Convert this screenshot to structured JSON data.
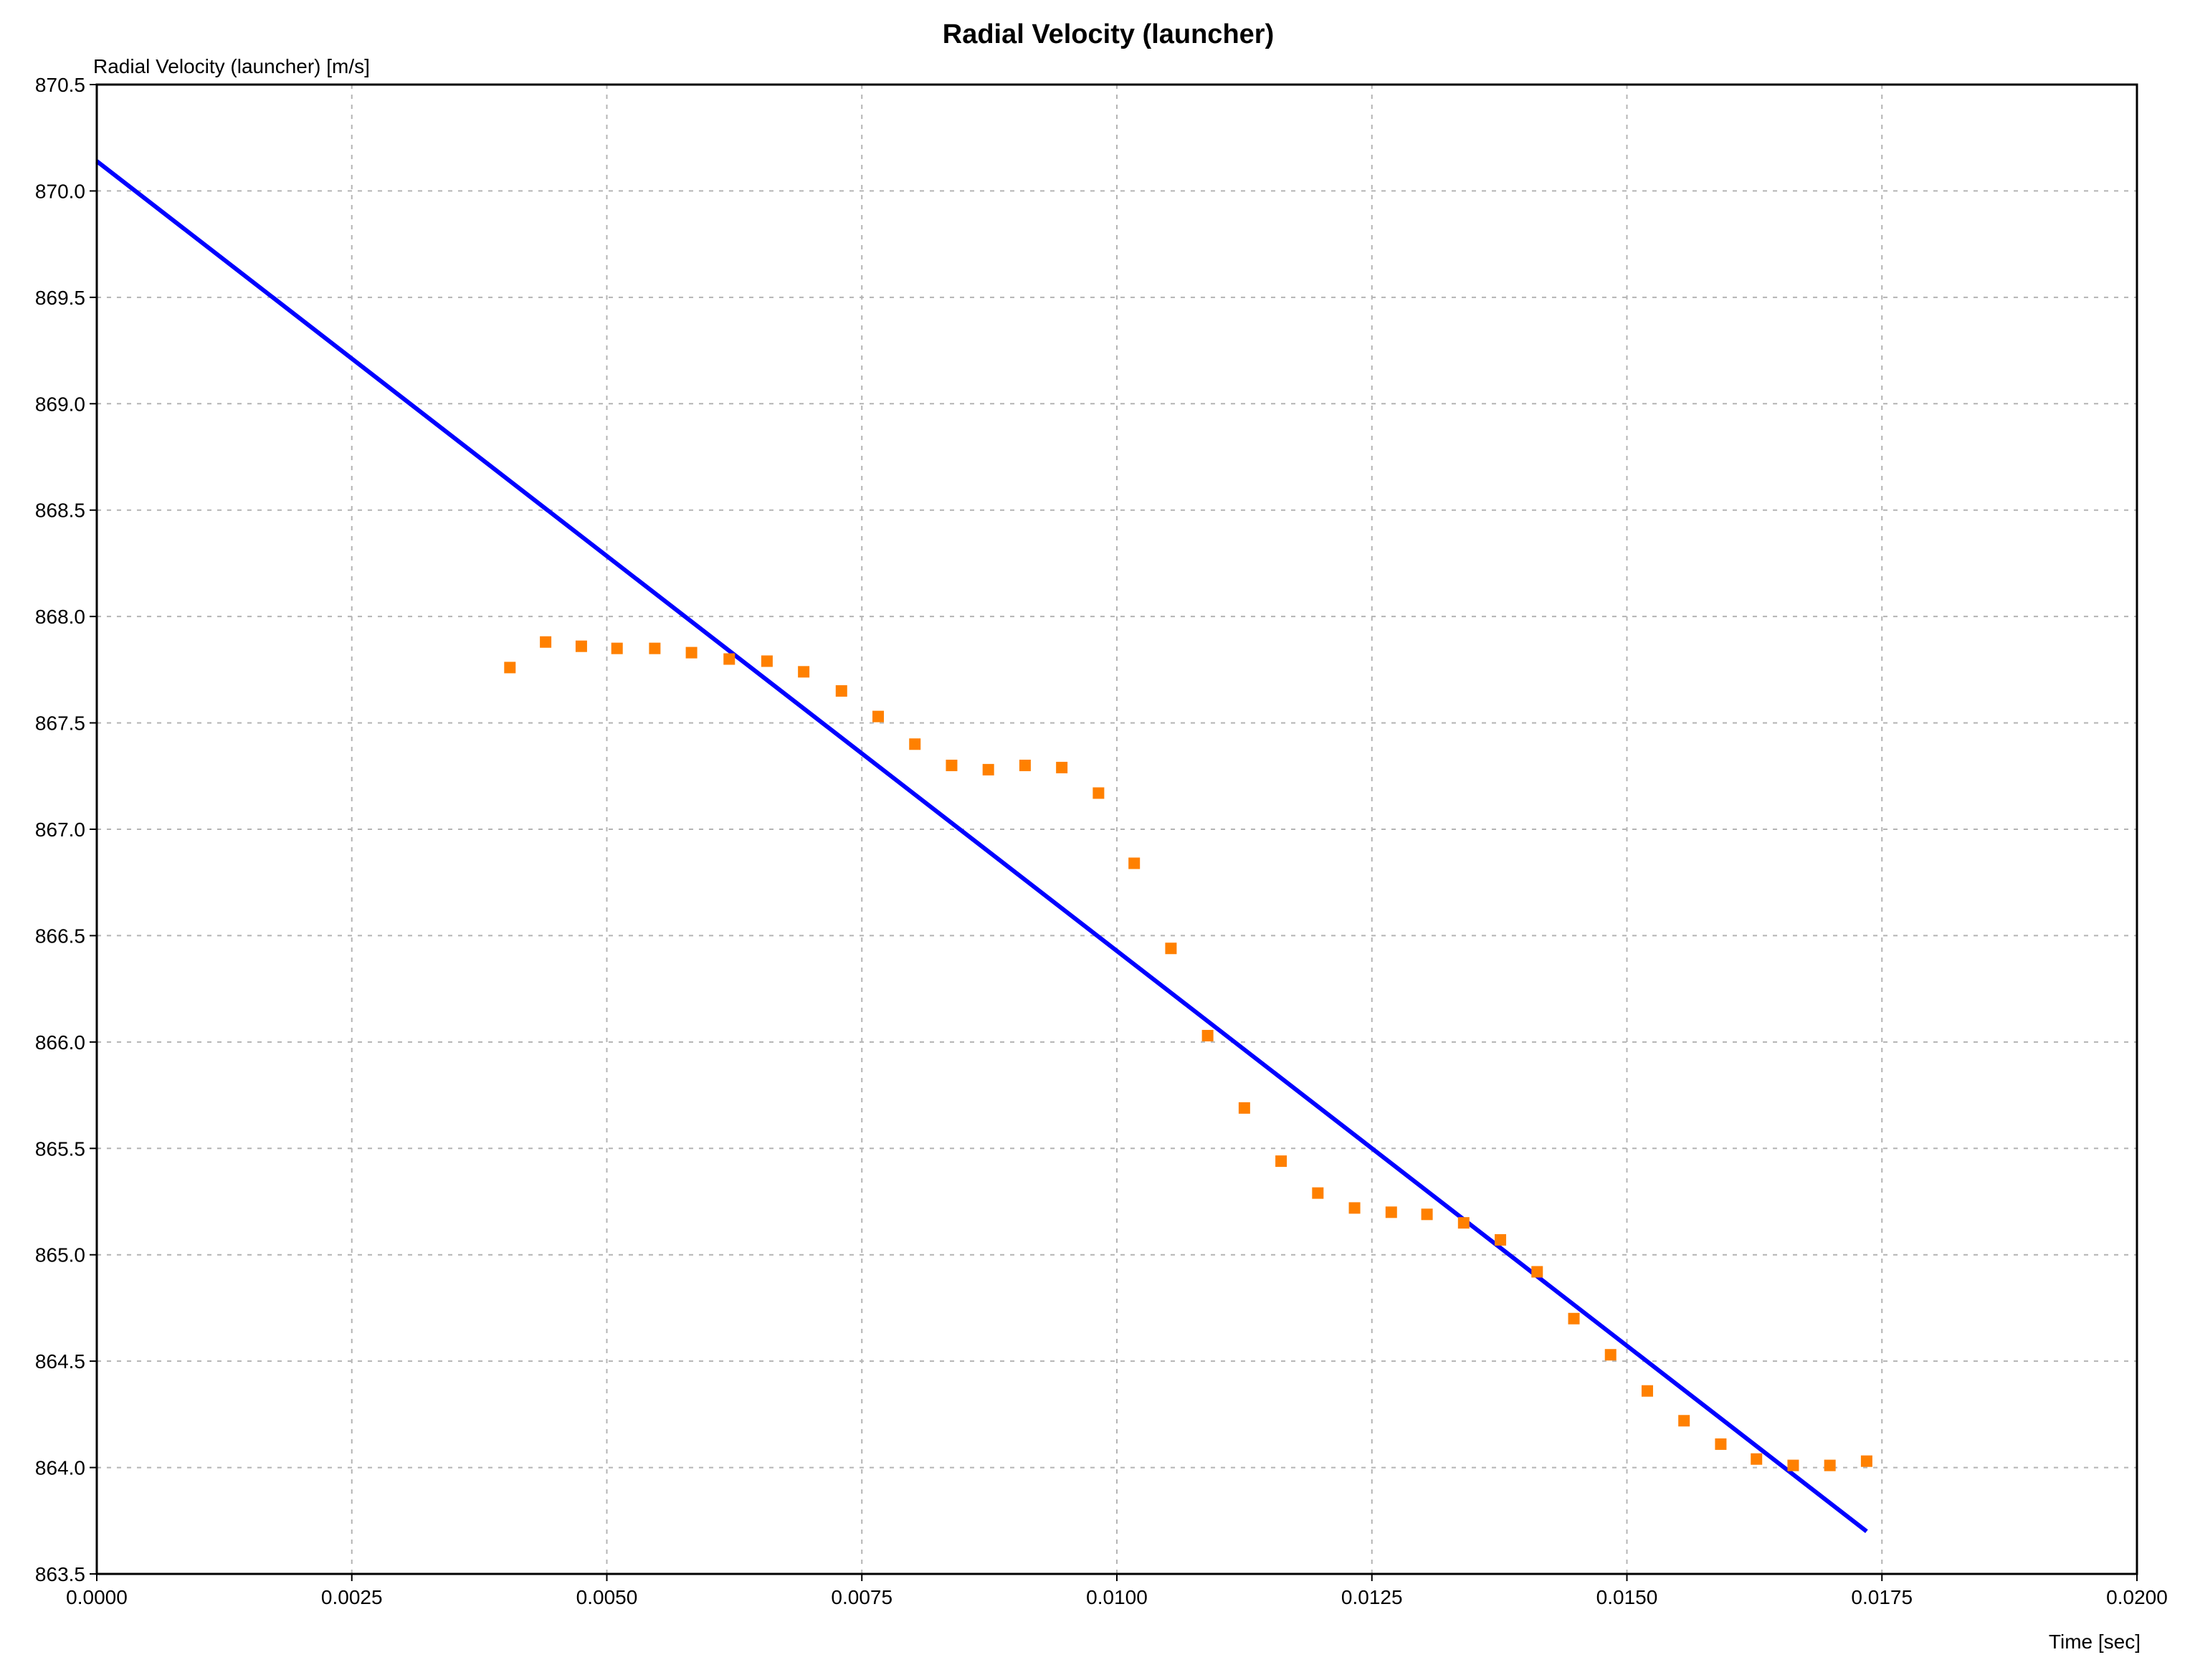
{
  "chart_data": {
    "type": "scatter",
    "title": "Radial Velocity (launcher)",
    "ylabel": "Radial Velocity (launcher) [m/s]",
    "xlabel": "Time [sec]",
    "xlim": [
      0.0,
      0.02
    ],
    "ylim": [
      863.5,
      870.5
    ],
    "grid": true,
    "x_ticks": [
      "0.0000",
      "0.0025",
      "0.0050",
      "0.0075",
      "0.0100",
      "0.0125",
      "0.0150",
      "0.0175",
      "0.0200"
    ],
    "x_tick_values": [
      0.0,
      0.0025,
      0.005,
      0.0075,
      0.01,
      0.0125,
      0.015,
      0.0175,
      0.02
    ],
    "y_ticks": [
      "863.5",
      "864.0",
      "864.5",
      "865.0",
      "865.5",
      "866.0",
      "866.5",
      "867.0",
      "867.5",
      "868.0",
      "868.5",
      "869.0",
      "869.5",
      "870.0",
      "870.5"
    ],
    "y_tick_values": [
      863.5,
      864.0,
      864.5,
      865.0,
      865.5,
      866.0,
      866.5,
      867.0,
      867.5,
      868.0,
      868.5,
      869.0,
      869.5,
      870.0,
      870.5
    ],
    "series": [
      {
        "kind": "line",
        "color": "#0000ff",
        "x": [
          0.0,
          0.01735
        ],
        "y": [
          870.14,
          863.7
        ]
      },
      {
        "kind": "points",
        "color": "#ff8000",
        "x": [
          0.00405,
          0.0044,
          0.00475,
          0.0051,
          0.00547,
          0.00583,
          0.0062,
          0.00657,
          0.00693,
          0.0073,
          0.00766,
          0.00802,
          0.00838,
          0.00874,
          0.0091,
          0.00946,
          0.00982,
          0.01017,
          0.01053,
          0.01089,
          0.01125,
          0.01161,
          0.01197,
          0.01233,
          0.01269,
          0.01304,
          0.0134,
          0.01376,
          0.01412,
          0.01448,
          0.01484,
          0.0152,
          0.01556,
          0.01592,
          0.01627,
          0.01663,
          0.01699,
          0.01735
        ],
        "y": [
          867.76,
          867.88,
          867.86,
          867.85,
          867.85,
          867.83,
          867.8,
          867.79,
          867.74,
          867.65,
          867.53,
          867.4,
          867.3,
          867.28,
          867.3,
          867.29,
          867.17,
          866.84,
          866.44,
          866.03,
          865.69,
          865.44,
          865.29,
          865.22,
          865.2,
          865.19,
          865.15,
          865.07,
          864.92,
          864.7,
          864.53,
          864.36,
          864.22,
          864.11,
          864.04,
          864.01,
          864.01,
          864.03
        ]
      }
    ]
  }
}
